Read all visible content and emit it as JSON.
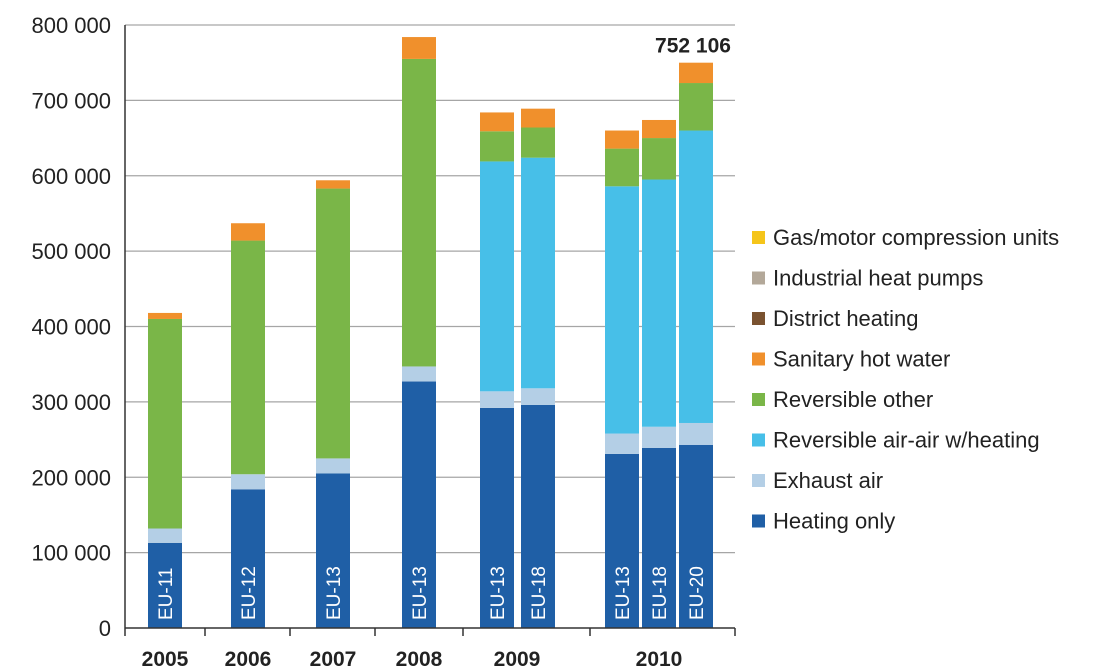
{
  "chart_data": {
    "type": "bar",
    "stacked": true,
    "ylim": [
      0,
      800000
    ],
    "yticks": [
      {
        "value": 0,
        "label": "0"
      },
      {
        "value": 100000,
        "label": "100 000"
      },
      {
        "value": 200000,
        "label": "200 000"
      },
      {
        "value": 300000,
        "label": "300 000"
      },
      {
        "value": 400000,
        "label": "400 000"
      },
      {
        "value": 500000,
        "label": "500 000"
      },
      {
        "value": 600000,
        "label": "600 000"
      },
      {
        "value": 700000,
        "label": "700 000"
      },
      {
        "value": 800000,
        "label": "800 000"
      }
    ],
    "grid": true,
    "legend_position": "right",
    "years": [
      "2005",
      "2006",
      "2007",
      "2008",
      "2009",
      "2010"
    ],
    "categories": [
      "EU-11",
      "EU-12",
      "EU-13",
      "EU-13",
      "EU-13",
      "EU-18",
      "EU-13",
      "EU-18",
      "EU-20"
    ],
    "bar_years": [
      "2005",
      "2006",
      "2007",
      "2008",
      "2009",
      "2009",
      "2010",
      "2010",
      "2010"
    ],
    "series": [
      {
        "name": "Heating only",
        "color": "#1f5fa6",
        "values": [
          113000,
          184000,
          205000,
          327000,
          292000,
          296000,
          231000,
          239000,
          243000
        ]
      },
      {
        "name": "Exhaust air",
        "color": "#b4cfe6",
        "values": [
          19000,
          20000,
          20000,
          20000,
          22000,
          22000,
          27000,
          28000,
          29000
        ]
      },
      {
        "name": "Reversible air-air w/heating",
        "color": "#47bfe8",
        "values": [
          0,
          0,
          0,
          0,
          305000,
          306000,
          328000,
          328000,
          388000
        ]
      },
      {
        "name": "Reversible other",
        "color": "#7ab648",
        "values": [
          278000,
          310000,
          358000,
          408000,
          40000,
          40000,
          50000,
          55000,
          63000
        ]
      },
      {
        "name": "Sanitary hot water",
        "color": "#f0902c",
        "values": [
          8000,
          23000,
          11000,
          29000,
          25000,
          25000,
          24000,
          24000,
          27000
        ]
      },
      {
        "name": "District heating",
        "color": "#7a5230",
        "values": [
          0,
          0,
          0,
          0,
          0,
          0,
          0,
          0,
          0
        ]
      },
      {
        "name": "Industrial heat pumps",
        "color": "#b3a899",
        "values": [
          0,
          0,
          0,
          0,
          0,
          0,
          0,
          0,
          0
        ]
      },
      {
        "name": "Gas/motor compression units",
        "color": "#f5c51a",
        "values": [
          0,
          0,
          0,
          0,
          0,
          0,
          0,
          0,
          0
        ]
      }
    ],
    "annotations": [
      {
        "bar_index": 8,
        "text": "752 106"
      }
    ]
  }
}
